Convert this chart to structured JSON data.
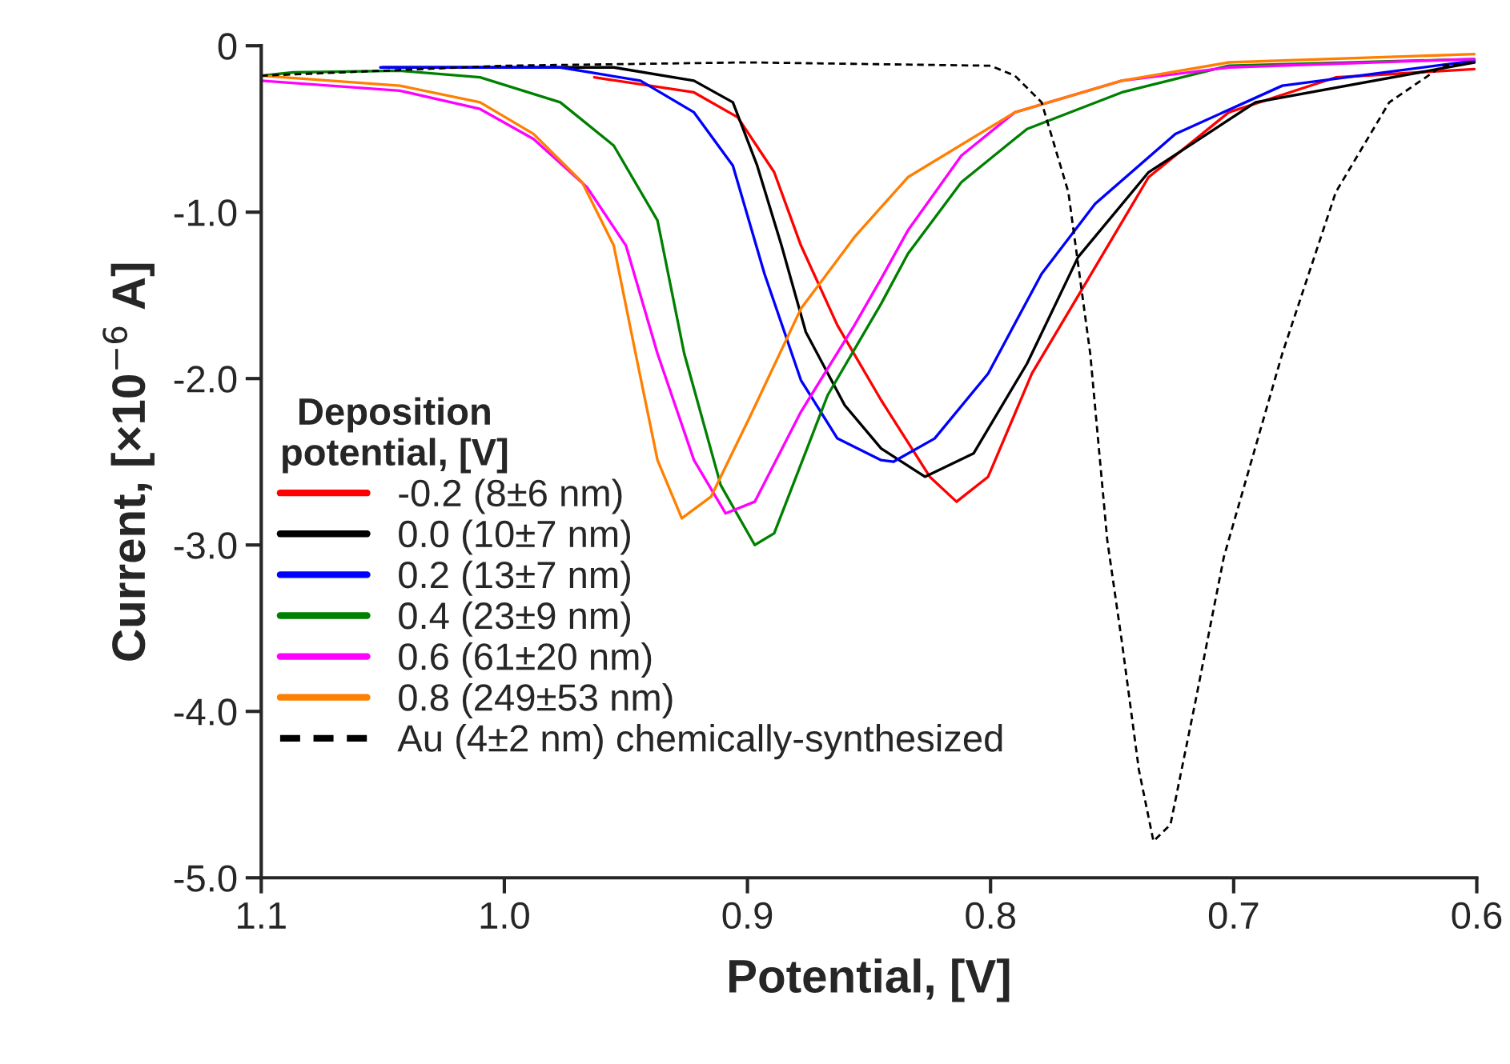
{
  "chart_data": {
    "type": "line",
    "xlabel": "Potential, [V]",
    "ylabel": "Current, [×10$^{−6}$ A]",
    "legend_title": "Deposition\npotential, [V]",
    "legend": "left",
    "grid": false,
    "marker": "none",
    "xlim": [
      1.1,
      0.6
    ],
    "xticks": [
      {
        "value": 1.1,
        "label": "1.1"
      },
      {
        "value": 1.0,
        "label": "1.0"
      },
      {
        "value": 0.9,
        "label": "0.9"
      },
      {
        "value": 0.8,
        "label": "0.8"
      },
      {
        "value": 0.7,
        "label": "0.7"
      },
      {
        "value": 0.6,
        "label": "0.6"
      }
    ],
    "ylim": [
      -5.0,
      0
    ],
    "yticks": [
      {
        "value": 0,
        "label": "0"
      },
      {
        "value": -1.0,
        "label": "-1.0"
      },
      {
        "value": -2.0,
        "label": "-2.0"
      },
      {
        "value": -3.0,
        "label": "-3.0"
      },
      {
        "value": -4.0,
        "label": "-4.0"
      },
      {
        "value": -5.0,
        "label": "-5.0"
      }
    ],
    "series": [
      {
        "name": "-0.2 (8±6 nm)",
        "color": "#ff0000",
        "line_style": "solid",
        "x": [
          0.963,
          0.922,
          0.904,
          0.889,
          0.878,
          0.863,
          0.845,
          0.825,
          0.814,
          0.801,
          0.783,
          0.761,
          0.735,
          0.702,
          0.658,
          0.601
        ],
        "values": [
          -0.19,
          -0.28,
          -0.43,
          -0.76,
          -1.2,
          -1.68,
          -2.13,
          -2.59,
          -2.74,
          -2.59,
          -1.97,
          -1.43,
          -0.79,
          -0.4,
          -0.19,
          -0.14
        ]
      },
      {
        "name": "0.0 (10±7 nm)",
        "color": "#000000",
        "line_style": "solid",
        "x": [
          1.05,
          0.955,
          0.922,
          0.906,
          0.896,
          0.886,
          0.876,
          0.86,
          0.845,
          0.827,
          0.807,
          0.785,
          0.764,
          0.735,
          0.691,
          0.601
        ],
        "values": [
          -0.13,
          -0.13,
          -0.21,
          -0.34,
          -0.72,
          -1.2,
          -1.72,
          -2.16,
          -2.42,
          -2.59,
          -2.45,
          -1.91,
          -1.27,
          -0.76,
          -0.34,
          -0.1
        ]
      },
      {
        "name": "0.2 (13±7 nm)",
        "color": "#0000ff",
        "line_style": "solid",
        "x": [
          1.051,
          0.977,
          0.944,
          0.922,
          0.906,
          0.893,
          0.878,
          0.863,
          0.845,
          0.84,
          0.823,
          0.801,
          0.779,
          0.757,
          0.724,
          0.68,
          0.601
        ],
        "values": [
          -0.13,
          -0.13,
          -0.21,
          -0.4,
          -0.72,
          -1.37,
          -2.01,
          -2.36,
          -2.49,
          -2.5,
          -2.36,
          -1.97,
          -1.37,
          -0.95,
          -0.53,
          -0.24,
          -0.09
        ]
      },
      {
        "name": "0.4 (23±9 nm)",
        "color": "#008000",
        "line_style": "solid",
        "x": [
          1.1,
          1.087,
          1.043,
          1.01,
          0.977,
          0.955,
          0.937,
          0.926,
          0.911,
          0.897,
          0.889,
          0.867,
          0.845,
          0.834,
          0.812,
          0.785,
          0.746,
          0.702,
          0.601
        ],
        "values": [
          -0.18,
          -0.16,
          -0.15,
          -0.19,
          -0.34,
          -0.6,
          -1.05,
          -1.85,
          -2.64,
          -3.0,
          -2.93,
          -2.1,
          -1.55,
          -1.25,
          -0.82,
          -0.5,
          -0.28,
          -0.12,
          -0.08
        ]
      },
      {
        "name": "0.6 (61±20 nm)",
        "color": "#ff00ff",
        "line_style": "solid",
        "x": [
          1.1,
          1.043,
          1.01,
          0.988,
          0.966,
          0.95,
          0.937,
          0.922,
          0.909,
          0.897,
          0.878,
          0.856,
          0.845,
          0.834,
          0.812,
          0.79,
          0.746,
          0.702,
          0.601
        ],
        "values": [
          -0.21,
          -0.27,
          -0.38,
          -0.56,
          -0.85,
          -1.2,
          -1.85,
          -2.49,
          -2.81,
          -2.74,
          -2.2,
          -1.68,
          -1.4,
          -1.11,
          -0.66,
          -0.4,
          -0.21,
          -0.13,
          -0.08
        ]
      },
      {
        "name": "0.8 (249±53 nm)",
        "color": "#ff7f00",
        "line_style": "solid",
        "x": [
          1.1,
          1.043,
          1.01,
          0.988,
          0.968,
          0.955,
          0.946,
          0.937,
          0.927,
          0.915,
          0.899,
          0.878,
          0.856,
          0.834,
          0.79,
          0.746,
          0.702,
          0.601
        ],
        "values": [
          -0.18,
          -0.24,
          -0.34,
          -0.53,
          -0.82,
          -1.2,
          -1.85,
          -2.49,
          -2.84,
          -2.71,
          -2.23,
          -1.58,
          -1.15,
          -0.79,
          -0.4,
          -0.21,
          -0.1,
          -0.05
        ]
      },
      {
        "name": "Au (4±2 nm) chemically-synthesized",
        "color": "#000000",
        "line_style": "dashed",
        "x": [
          1.1,
          1.0,
          0.9,
          0.8,
          0.79,
          0.779,
          0.768,
          0.759,
          0.752,
          0.746,
          0.739,
          0.733,
          0.726,
          0.716,
          0.704,
          0.68,
          0.658,
          0.636,
          0.614,
          0.601
        ],
        "values": [
          -0.18,
          -0.12,
          -0.1,
          -0.12,
          -0.18,
          -0.34,
          -0.88,
          -1.85,
          -2.97,
          -3.58,
          -4.35,
          -4.78,
          -4.68,
          -3.96,
          -3.07,
          -1.85,
          -0.88,
          -0.34,
          -0.12,
          -0.1
        ]
      }
    ]
  }
}
